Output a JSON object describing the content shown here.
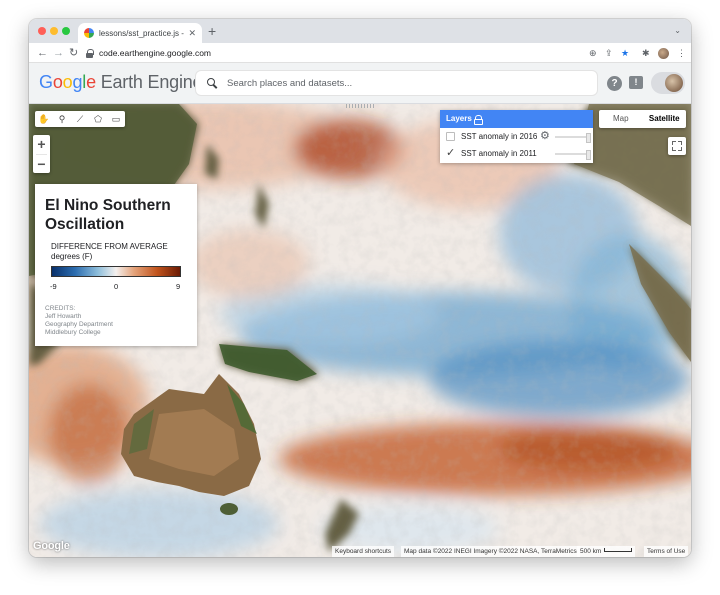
{
  "browser": {
    "tab_title": "lessons/sst_practice.js - Earth",
    "tab_close": "✕",
    "new_tab": "+",
    "tab_menu": "⌄",
    "url": "code.earthengine.google.com",
    "nav": {
      "back": "←",
      "forward": "→",
      "reload": "↻"
    },
    "toolbar_icons": [
      "zoom-icon",
      "share-icon",
      "bookmark-star-icon",
      "extensions-icon",
      "profile-avatar",
      "menu-dots-icon"
    ],
    "toolbar_glyphs": {
      "zoom": "⊕",
      "share": "⇪",
      "star": "★",
      "extensions": "✱",
      "menu": "⋮"
    }
  },
  "header": {
    "logo_letters": [
      "G",
      "o",
      "o",
      "g",
      "l",
      "e"
    ],
    "logo_product": "Earth Engine",
    "search_placeholder": "Search places and datasets...",
    "help_glyph": "?",
    "feedback_glyph": "!"
  },
  "map": {
    "draw_tools": [
      "✋",
      "⚲",
      "⟋",
      "⬠",
      "▭"
    ],
    "draw_tool_names": [
      "pan-hand-icon",
      "marker-icon",
      "line-icon",
      "polygon-icon",
      "rectangle-icon"
    ],
    "zoom_in": "+",
    "zoom_out": "−",
    "map_type": {
      "map": "Map",
      "satellite": "Satellite",
      "active": "satellite"
    },
    "google_watermark": "Google",
    "attribution": {
      "shortcuts": "Keyboard shortcuts",
      "data": "Map data ©2022 INEGI Imagery ©2022 NASA, TerraMetrics",
      "scale": "500 km",
      "terms": "Terms of Use"
    },
    "colors": {
      "ocean_warm": "#c0622e",
      "ocean_cool": "#3a7fb8",
      "land": "#5f5a3c",
      "accent": "#4285f4"
    }
  },
  "legend_panel": {
    "title": "El Nino Southern Oscillation",
    "legend_label_line1": "DIFFERENCE FROM AVERAGE",
    "legend_label_line2": "degrees (F)",
    "min": "-9",
    "mid": "0",
    "max": "9",
    "palette": [
      "#08306b",
      "#2c6db0",
      "#8fbfdc",
      "#f4f0ee",
      "#e4a37b",
      "#c1541d",
      "#6b1a04"
    ],
    "credits": [
      "CREDITS:",
      "Jeff Howarth",
      "Geography Department",
      "Middlebury College"
    ]
  },
  "layers": {
    "header": "Layers",
    "items": [
      {
        "label": "SST anomaly in 2016",
        "checked": false
      },
      {
        "label": "SST anomaly in 2011",
        "checked": true
      }
    ]
  }
}
